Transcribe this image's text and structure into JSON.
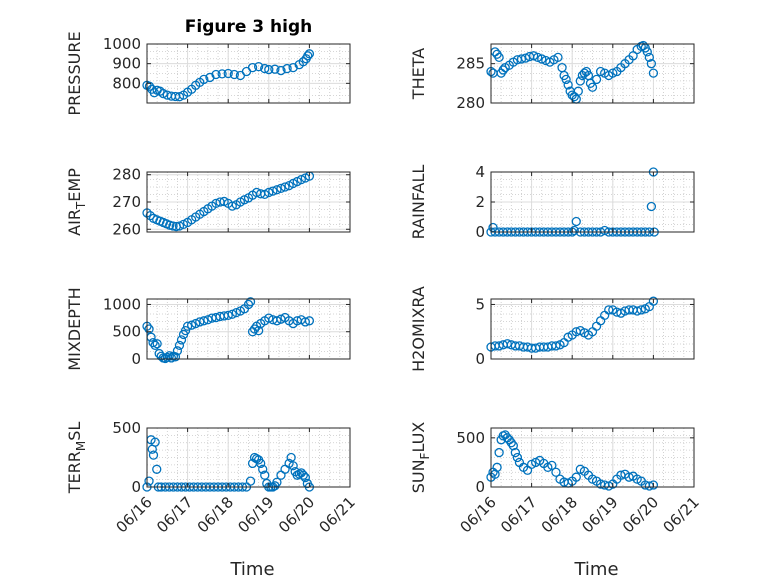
{
  "figure_title": "Figure 3 high",
  "xlabel_time": "Time",
  "marker_color": "#0072BD",
  "date_tick_labels": [
    "06/16",
    "06/17",
    "06/18",
    "06/19",
    "06/20",
    "06/21"
  ],
  "chart_data": [
    {
      "type": "scatter",
      "ylabel": "PRESSURE",
      "title": "Figure 3 high",
      "ylim": [
        700,
        1000
      ],
      "yticks": [
        800,
        900,
        1000
      ],
      "xlim": [
        0,
        5
      ],
      "x": [
        0.0,
        0.06,
        0.12,
        0.18,
        0.25,
        0.32,
        0.4,
        0.5,
        0.6,
        0.7,
        0.8,
        0.9,
        1.0,
        1.1,
        1.2,
        1.3,
        1.4,
        1.55,
        1.7,
        1.85,
        2.0,
        2.15,
        2.3,
        2.45,
        2.6,
        2.75,
        2.9,
        3.0,
        3.15,
        3.3,
        3.45,
        3.6,
        3.75,
        3.85,
        3.92,
        3.96,
        4.0
      ],
      "y": [
        790,
        785,
        770,
        752,
        765,
        760,
        748,
        740,
        735,
        733,
        732,
        740,
        755,
        770,
        790,
        805,
        820,
        830,
        845,
        848,
        850,
        845,
        840,
        860,
        880,
        885,
        875,
        870,
        872,
        865,
        875,
        880,
        895,
        910,
        925,
        940,
        950
      ]
    },
    {
      "type": "scatter",
      "ylabel": "THETA",
      "ylim": [
        280,
        287.5
      ],
      "yticks": [
        280,
        285
      ],
      "xlim": [
        0,
        5
      ],
      "x": [
        0.0,
        0.05,
        0.1,
        0.15,
        0.2,
        0.25,
        0.3,
        0.35,
        0.45,
        0.55,
        0.65,
        0.75,
        0.85,
        0.95,
        1.05,
        1.15,
        1.25,
        1.35,
        1.45,
        1.55,
        1.65,
        1.75,
        1.8,
        1.85,
        1.9,
        1.95,
        2.0,
        2.05,
        2.1,
        2.15,
        2.2,
        2.25,
        2.3,
        2.35,
        2.4,
        2.45,
        2.5,
        2.6,
        2.7,
        2.8,
        2.9,
        3.0,
        3.1,
        3.2,
        3.3,
        3.4,
        3.5,
        3.6,
        3.7,
        3.75,
        3.8,
        3.85,
        3.9,
        3.95,
        4.0
      ],
      "y": [
        284.0,
        283.8,
        286.5,
        286.2,
        285.8,
        283.8,
        284.2,
        284.5,
        284.8,
        285.2,
        285.5,
        285.6,
        285.7,
        285.9,
        286.0,
        285.8,
        285.6,
        285.4,
        285.2,
        285.5,
        285.8,
        284.5,
        283.5,
        283.0,
        282.3,
        281.5,
        281.0,
        280.8,
        280.5,
        281.5,
        282.8,
        283.5,
        283.8,
        284.0,
        283.5,
        282.5,
        282.0,
        283.0,
        284.0,
        283.8,
        283.5,
        283.8,
        284.0,
        284.5,
        285.0,
        285.5,
        286.0,
        286.8,
        287.2,
        287.3,
        287.0,
        286.5,
        285.8,
        285.0,
        283.8
      ]
    },
    {
      "type": "scatter",
      "ylabel": "AIR_TEMP",
      "ylim": [
        259,
        281
      ],
      "yticks": [
        260,
        270,
        280
      ],
      "xlim": [
        0,
        5
      ],
      "x": [
        0.0,
        0.08,
        0.16,
        0.24,
        0.32,
        0.4,
        0.48,
        0.56,
        0.64,
        0.72,
        0.8,
        0.9,
        1.0,
        1.1,
        1.2,
        1.3,
        1.4,
        1.5,
        1.6,
        1.7,
        1.8,
        1.9,
        2.0,
        2.1,
        2.2,
        2.3,
        2.4,
        2.5,
        2.6,
        2.7,
        2.8,
        2.9,
        3.0,
        3.1,
        3.2,
        3.3,
        3.4,
        3.5,
        3.6,
        3.7,
        3.8,
        3.9,
        4.0
      ],
      "y": [
        266.0,
        265.0,
        264.0,
        263.5,
        263.0,
        262.5,
        262.0,
        261.5,
        261.2,
        261.0,
        261.2,
        261.8,
        262.5,
        263.5,
        264.5,
        265.5,
        266.5,
        267.5,
        268.5,
        269.5,
        270.0,
        270.2,
        269.5,
        268.5,
        269.0,
        270.0,
        270.8,
        271.5,
        272.5,
        273.5,
        273.0,
        272.8,
        273.5,
        274.0,
        274.5,
        275.0,
        275.5,
        276.0,
        276.8,
        277.5,
        278.2,
        278.8,
        279.5
      ]
    },
    {
      "type": "scatter",
      "ylabel": "RAINFALL",
      "ylim": [
        0,
        4
      ],
      "yticks": [
        0,
        2,
        4
      ],
      "xlim": [
        0,
        5
      ],
      "x": [
        0.0,
        0.05,
        0.1,
        0.2,
        0.3,
        0.4,
        0.5,
        0.6,
        0.7,
        0.8,
        0.9,
        1.0,
        1.1,
        1.2,
        1.3,
        1.4,
        1.5,
        1.6,
        1.7,
        1.8,
        1.9,
        2.0,
        2.05,
        2.1,
        2.2,
        2.3,
        2.4,
        2.5,
        2.6,
        2.7,
        2.8,
        2.9,
        3.0,
        3.1,
        3.2,
        3.3,
        3.4,
        3.5,
        3.6,
        3.7,
        3.8,
        3.9,
        3.95,
        4.0,
        4.02
      ],
      "y": [
        0,
        0.3,
        0,
        0,
        0,
        0,
        0,
        0,
        0,
        0,
        0,
        0,
        0,
        0,
        0,
        0,
        0,
        0,
        0,
        0,
        0,
        0,
        0.1,
        0.7,
        0,
        0,
        0,
        0,
        0,
        0,
        0.1,
        0,
        0,
        0,
        0,
        0,
        0,
        0,
        0,
        0,
        0,
        0,
        1.7,
        4.0,
        0
      ]
    },
    {
      "type": "scatter",
      "ylabel": "MIXDEPTH",
      "ylim": [
        0,
        1100
      ],
      "yticks": [
        0,
        500,
        1000
      ],
      "xlim": [
        0,
        5
      ],
      "x": [
        0.0,
        0.05,
        0.1,
        0.15,
        0.2,
        0.25,
        0.3,
        0.35,
        0.4,
        0.45,
        0.5,
        0.55,
        0.6,
        0.65,
        0.7,
        0.75,
        0.8,
        0.85,
        0.9,
        0.95,
        1.0,
        1.1,
        1.2,
        1.3,
        1.4,
        1.5,
        1.6,
        1.7,
        1.8,
        1.9,
        2.0,
        2.1,
        2.2,
        2.3,
        2.4,
        2.5,
        2.55,
        2.6,
        2.65,
        2.7,
        2.75,
        2.8,
        2.9,
        3.0,
        3.1,
        3.2,
        3.3,
        3.4,
        3.5,
        3.6,
        3.7,
        3.8,
        3.9,
        4.0
      ],
      "y": [
        600,
        550,
        400,
        300,
        250,
        280,
        100,
        50,
        20,
        10,
        30,
        60,
        20,
        50,
        40,
        150,
        250,
        350,
        450,
        520,
        600,
        620,
        650,
        680,
        700,
        720,
        750,
        760,
        780,
        790,
        800,
        820,
        850,
        880,
        920,
        1000,
        1050,
        500,
        550,
        600,
        520,
        650,
        700,
        750,
        720,
        700,
        730,
        760,
        700,
        650,
        700,
        720,
        680,
        700
      ]
    },
    {
      "type": "scatter",
      "ylabel": "H2OMIXRA",
      "ylim": [
        0,
        5.5
      ],
      "yticks": [
        0,
        5
      ],
      "xlim": [
        0,
        5
      ],
      "x": [
        0.0,
        0.1,
        0.2,
        0.3,
        0.4,
        0.5,
        0.6,
        0.7,
        0.8,
        0.9,
        1.0,
        1.1,
        1.2,
        1.3,
        1.4,
        1.5,
        1.6,
        1.7,
        1.8,
        1.9,
        2.0,
        2.1,
        2.2,
        2.3,
        2.4,
        2.5,
        2.6,
        2.7,
        2.8,
        2.9,
        3.0,
        3.1,
        3.2,
        3.3,
        3.4,
        3.5,
        3.6,
        3.7,
        3.8,
        3.9,
        4.0
      ],
      "y": [
        1.1,
        1.2,
        1.2,
        1.3,
        1.4,
        1.3,
        1.2,
        1.2,
        1.1,
        1.1,
        1.0,
        1.0,
        1.1,
        1.1,
        1.1,
        1.2,
        1.2,
        1.3,
        1.5,
        2.0,
        2.2,
        2.5,
        2.6,
        2.4,
        2.2,
        2.5,
        3.0,
        3.5,
        4.0,
        4.5,
        4.5,
        4.3,
        4.2,
        4.4,
        4.5,
        4.5,
        4.4,
        4.5,
        4.6,
        4.8,
        5.3
      ]
    },
    {
      "type": "scatter",
      "ylabel": "TERR_MSL",
      "ylim": [
        0,
        500
      ],
      "yticks": [
        0,
        500
      ],
      "xlim": [
        0,
        5
      ],
      "x": [
        0.0,
        0.05,
        0.1,
        0.13,
        0.16,
        0.2,
        0.24,
        0.28,
        0.35,
        0.45,
        0.55,
        0.65,
        0.75,
        0.85,
        0.95,
        1.05,
        1.15,
        1.25,
        1.35,
        1.45,
        1.55,
        1.65,
        1.75,
        1.85,
        1.95,
        2.05,
        2.15,
        2.25,
        2.35,
        2.45,
        2.55,
        2.6,
        2.65,
        2.7,
        2.75,
        2.8,
        2.85,
        2.9,
        2.95,
        3.0,
        3.05,
        3.1,
        3.15,
        3.2,
        3.3,
        3.4,
        3.5,
        3.55,
        3.6,
        3.65,
        3.7,
        3.75,
        3.8,
        3.85,
        3.9,
        3.95,
        4.0
      ],
      "y": [
        0,
        50,
        400,
        320,
        270,
        380,
        150,
        0,
        0,
        0,
        0,
        0,
        0,
        0,
        0,
        0,
        0,
        0,
        0,
        0,
        0,
        0,
        0,
        0,
        0,
        0,
        0,
        0,
        0,
        0,
        50,
        200,
        250,
        240,
        230,
        200,
        150,
        100,
        30,
        0,
        0,
        0,
        10,
        40,
        100,
        150,
        200,
        250,
        180,
        130,
        100,
        110,
        120,
        100,
        80,
        30,
        0
      ]
    },
    {
      "type": "scatter",
      "ylabel": "SUN_FLUX",
      "ylim": [
        0,
        600
      ],
      "yticks": [
        0,
        500
      ],
      "xlim": [
        0,
        5
      ],
      "x": [
        0.0,
        0.05,
        0.1,
        0.15,
        0.2,
        0.25,
        0.3,
        0.35,
        0.4,
        0.45,
        0.5,
        0.55,
        0.6,
        0.65,
        0.7,
        0.8,
        0.9,
        1.0,
        1.1,
        1.2,
        1.3,
        1.4,
        1.5,
        1.6,
        1.7,
        1.8,
        1.9,
        2.0,
        2.1,
        2.2,
        2.3,
        2.4,
        2.5,
        2.6,
        2.7,
        2.8,
        2.9,
        3.0,
        3.1,
        3.2,
        3.3,
        3.4,
        3.5,
        3.6,
        3.7,
        3.8,
        3.9,
        4.0
      ],
      "y": [
        100,
        150,
        130,
        200,
        350,
        480,
        520,
        530,
        500,
        480,
        450,
        420,
        350,
        300,
        250,
        200,
        170,
        230,
        250,
        270,
        240,
        200,
        220,
        150,
        80,
        50,
        40,
        60,
        100,
        180,
        160,
        120,
        80,
        60,
        30,
        20,
        10,
        30,
        80,
        120,
        130,
        100,
        110,
        80,
        60,
        20,
        10,
        20
      ]
    }
  ]
}
